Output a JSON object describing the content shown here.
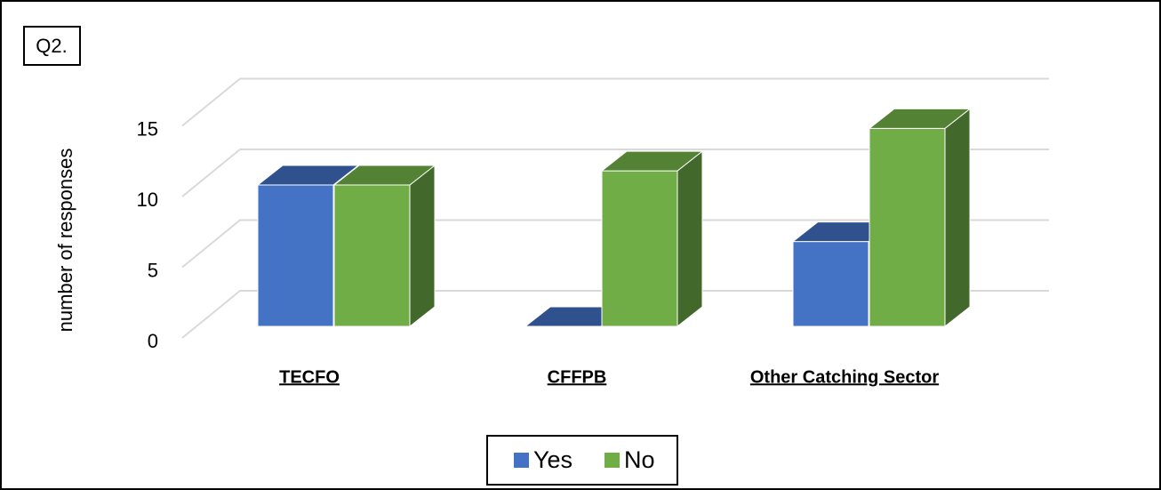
{
  "chart_data": {
    "type": "bar3d",
    "title": "Q2.",
    "y_label": "number of responses",
    "categories": [
      "TECFO",
      "CFFPB",
      "Other Catching Sector"
    ],
    "series": [
      {
        "name": "Yes",
        "color": "#4472c4",
        "top_color": "#2f528f",
        "side_color": "#2a4a85",
        "values": [
          10,
          0,
          6
        ]
      },
      {
        "name": "No",
        "color": "#70ad47",
        "top_color": "#548235",
        "side_color": "#43682b",
        "values": [
          10,
          11,
          14
        ]
      }
    ],
    "ylim": [
      0,
      15
    ],
    "yticks": [
      0,
      5,
      10,
      15
    ],
    "grid": true,
    "legend": "bottom"
  }
}
